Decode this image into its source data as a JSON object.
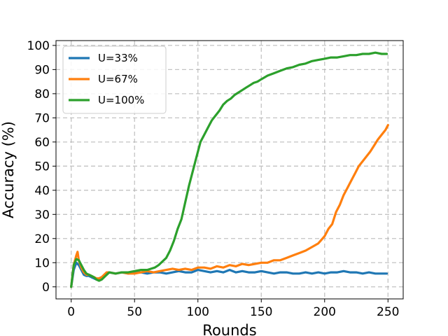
{
  "chart_data": {
    "type": "line",
    "xlabel": "Rounds",
    "ylabel": "Accuracy (%)",
    "xlim": [
      -12,
      262
    ],
    "ylim": [
      -5,
      102
    ],
    "xticks": [
      0,
      50,
      100,
      150,
      200,
      250
    ],
    "yticks": [
      0,
      10,
      20,
      30,
      40,
      50,
      60,
      70,
      80,
      90,
      100
    ],
    "grid": true,
    "legend_position": "top-left",
    "series": [
      {
        "name": "U=33%",
        "color": "#1f77b4",
        "x": [
          0,
          2,
          4,
          6,
          8,
          10,
          12,
          14,
          16,
          18,
          20,
          22,
          24,
          26,
          28,
          30,
          35,
          40,
          45,
          50,
          55,
          60,
          65,
          70,
          75,
          80,
          85,
          90,
          95,
          100,
          105,
          110,
          115,
          120,
          125,
          130,
          135,
          140,
          145,
          150,
          155,
          160,
          165,
          170,
          175,
          180,
          185,
          190,
          195,
          200,
          205,
          210,
          215,
          220,
          225,
          230,
          235,
          240,
          245,
          249
        ],
        "y": [
          0,
          7,
          10,
          9,
          7,
          5,
          4.5,
          4.5,
          4,
          3.5,
          3,
          3.5,
          4,
          4.5,
          5,
          6,
          5.5,
          6,
          5.5,
          6,
          6,
          5.5,
          6,
          6,
          5.5,
          6,
          6.5,
          6,
          6,
          7,
          6.5,
          6,
          6.5,
          6,
          7,
          6,
          6.5,
          6,
          6,
          6.5,
          6,
          5.5,
          6,
          6,
          5.5,
          5.5,
          6,
          5.5,
          6,
          5.5,
          6,
          6,
          6.5,
          6,
          6,
          5.5,
          6,
          5.5,
          5.5,
          5.5
        ]
      },
      {
        "name": "U=67%",
        "color": "#ff7f0e",
        "x": [
          0,
          2,
          4,
          5,
          6,
          8,
          10,
          12,
          14,
          16,
          18,
          20,
          22,
          24,
          26,
          28,
          30,
          35,
          40,
          45,
          50,
          55,
          60,
          65,
          70,
          75,
          80,
          85,
          90,
          95,
          100,
          105,
          110,
          115,
          120,
          125,
          130,
          135,
          140,
          145,
          150,
          155,
          160,
          165,
          170,
          175,
          180,
          185,
          190,
          195,
          200,
          203,
          206,
          209,
          212,
          215,
          218,
          221,
          224,
          227,
          230,
          233,
          236,
          239,
          242,
          245,
          248,
          250
        ],
        "y": [
          0,
          9,
          13,
          14.5,
          11,
          8,
          6,
          5,
          5,
          4.5,
          4,
          3.5,
          3.5,
          4,
          5,
          6,
          6,
          5.5,
          6,
          5.5,
          5.5,
          6,
          6.5,
          6,
          6.5,
          7,
          7.5,
          7,
          7.5,
          7,
          8,
          8,
          7.5,
          8.5,
          8,
          9,
          8.5,
          9.5,
          9,
          9.5,
          10,
          10,
          11,
          11,
          12,
          13,
          14,
          15,
          16.5,
          18,
          21,
          24,
          26,
          31,
          34,
          38,
          41,
          44,
          47,
          50,
          52,
          54,
          56,
          58.5,
          61,
          63,
          65,
          67
        ]
      },
      {
        "name": "U=100%",
        "color": "#2ca02c",
        "x": [
          0,
          2,
          4,
          6,
          8,
          10,
          12,
          14,
          16,
          18,
          20,
          22,
          24,
          26,
          28,
          30,
          35,
          40,
          45,
          50,
          55,
          60,
          63,
          66,
          69,
          72,
          75,
          78,
          81,
          84,
          87,
          90,
          93,
          96,
          99,
          102,
          105,
          108,
          111,
          114,
          117,
          120,
          123,
          126,
          129,
          132,
          135,
          138,
          141,
          144,
          147,
          150,
          155,
          160,
          165,
          170,
          175,
          180,
          185,
          190,
          195,
          200,
          205,
          210,
          215,
          220,
          225,
          230,
          235,
          240,
          245,
          249
        ],
        "y": [
          0,
          9,
          11.5,
          11,
          9,
          7,
          5.5,
          5,
          4.5,
          4,
          3,
          2.5,
          3,
          4,
          5,
          6,
          5.5,
          6,
          6,
          6.5,
          7,
          7,
          7.5,
          8,
          9,
          10.5,
          12,
          15,
          19,
          24,
          28,
          35,
          42,
          48,
          54,
          60,
          63,
          66,
          69,
          71,
          73,
          75.5,
          77,
          78,
          79.5,
          80.5,
          81.5,
          82.5,
          83.5,
          84.5,
          85,
          86,
          87.5,
          88.5,
          89.5,
          90.5,
          91,
          92,
          92.5,
          93.5,
          94,
          94.5,
          95,
          95,
          95.5,
          96,
          96,
          96.5,
          96.5,
          97,
          96.5,
          96.5
        ]
      }
    ]
  }
}
